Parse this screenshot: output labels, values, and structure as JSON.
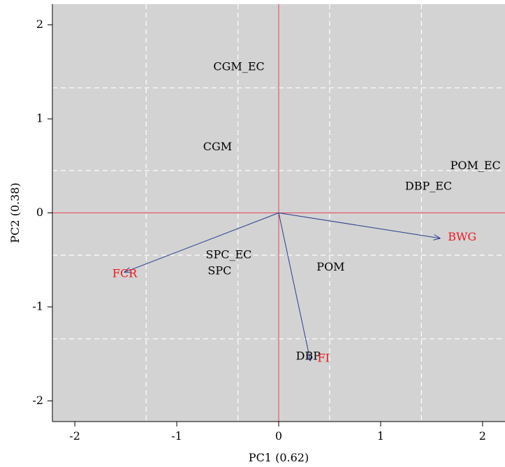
{
  "chart_data": {
    "type": "scatter",
    "subtype": "pca-biplot",
    "title": "",
    "xlabel": "PC1 (0.62)",
    "ylabel": "PC2 (0.38)",
    "xlim": [
      -2.22,
      2.22
    ],
    "ylim": [
      -2.22,
      2.22
    ],
    "xticks": [
      -2,
      -1,
      0,
      1,
      2
    ],
    "yticks": [
      -2,
      -1,
      0,
      1,
      2
    ],
    "grid": true,
    "grid_style": "dashed white",
    "grid_x": [
      -1.3,
      -0.4,
      0.5,
      1.4
    ],
    "grid_y": [
      1.33,
      0.45,
      -0.45,
      -1.34
    ],
    "background_color": "#d3d3d3",
    "axis_line_color": "#e8435a",
    "arrow_color": "#2a3e8f",
    "variable_color": "#e8191f",
    "observation_color": "#000000",
    "observations": [
      {
        "label": "CGM_EC",
        "x": -0.39,
        "y": 1.55
      },
      {
        "label": "CGM",
        "x": -0.6,
        "y": 0.7
      },
      {
        "label": "POM_EC",
        "x": 1.93,
        "y": 0.5
      },
      {
        "label": "DBP_EC",
        "x": 1.47,
        "y": 0.28
      },
      {
        "label": "SPC_EC",
        "x": -0.49,
        "y": -0.45
      },
      {
        "label": "SPC",
        "x": -0.58,
        "y": -0.62
      },
      {
        "label": "POM",
        "x": 0.51,
        "y": -0.58
      },
      {
        "label": "DBP",
        "x": 0.29,
        "y": -1.53
      }
    ],
    "variables": [
      {
        "label": "FCR",
        "x": -1.51,
        "y": -0.65,
        "arrow_x": -1.51,
        "arrow_y": -0.63
      },
      {
        "label": "BWG",
        "x": 1.8,
        "y": -0.26,
        "arrow_x": 1.58,
        "arrow_y": -0.27
      },
      {
        "label": "FI",
        "x": 0.44,
        "y": -1.55,
        "arrow_x": 0.31,
        "arrow_y": -1.57
      }
    ]
  }
}
